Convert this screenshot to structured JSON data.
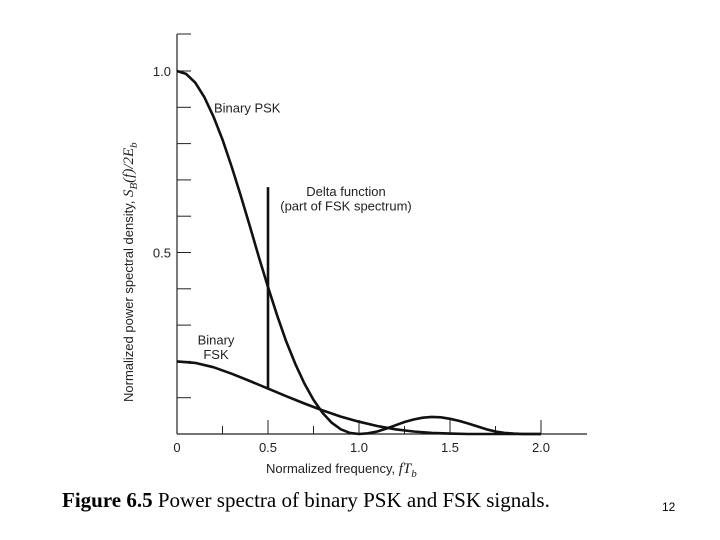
{
  "chart_data": {
    "type": "line",
    "xlabel": "Normalized frequency, ",
    "xlabel_var": "fT",
    "xlabel_sub": "b",
    "ylabel": "Normalized power spectral density, ",
    "ylabel_var": "S",
    "ylabel_sub": "B",
    "ylabel_tail": "(f)/2E",
    "ylabel_tail_sub": "b",
    "xlim": [
      0,
      2.25
    ],
    "ylim": [
      0,
      1.1
    ],
    "x_ticks": [
      {
        "value": 0,
        "label": "0"
      },
      {
        "value": 0.5,
        "label": "0.5"
      },
      {
        "value": 1.0,
        "label": "1.0"
      },
      {
        "value": 1.5,
        "label": "1.5"
      },
      {
        "value": 2.0,
        "label": "2.0"
      }
    ],
    "y_ticks": [
      {
        "value": 0.5,
        "label": "0.5"
      },
      {
        "value": 1.0,
        "label": "1.0"
      }
    ],
    "y_minor_ticks": [
      0.1,
      0.2,
      0.3,
      0.4,
      0.6,
      0.7,
      0.8,
      0.9
    ],
    "series": [
      {
        "name": "Binary PSK",
        "x": [
          0,
          0.05,
          0.1,
          0.15,
          0.2,
          0.25,
          0.3,
          0.35,
          0.4,
          0.45,
          0.5,
          0.55,
          0.6,
          0.65,
          0.7,
          0.75,
          0.8,
          0.85,
          0.9,
          0.95,
          1.0,
          1.05,
          1.1,
          1.15,
          1.2,
          1.25,
          1.3,
          1.35,
          1.4,
          1.45,
          1.5,
          1.55,
          1.6,
          1.65,
          1.7,
          1.75,
          1.8,
          1.85,
          1.9,
          1.95,
          2.0
        ],
        "y": [
          1.0,
          0.992,
          0.968,
          0.928,
          0.875,
          0.811,
          0.737,
          0.657,
          0.573,
          0.487,
          0.405,
          0.327,
          0.255,
          0.193,
          0.139,
          0.094,
          0.058,
          0.031,
          0.013,
          0.003,
          0.0,
          0.002,
          0.007,
          0.015,
          0.024,
          0.033,
          0.04,
          0.045,
          0.047,
          0.046,
          0.042,
          0.036,
          0.029,
          0.021,
          0.013,
          0.007,
          0.003,
          0.001,
          0.0,
          0.0,
          0.0
        ]
      },
      {
        "name": "Binary FSK",
        "x": [
          0,
          0.1,
          0.2,
          0.3,
          0.4,
          0.5,
          0.6,
          0.7,
          0.8,
          0.9,
          1.0,
          1.1,
          1.2,
          1.3,
          1.4,
          1.5,
          1.6,
          1.7,
          1.8,
          1.9,
          2.0
        ],
        "y": [
          0.2,
          0.196,
          0.184,
          0.166,
          0.146,
          0.125,
          0.104,
          0.084,
          0.065,
          0.048,
          0.034,
          0.022,
          0.013,
          0.007,
          0.003,
          0.001,
          0.0,
          0.0,
          0.0,
          0.0,
          0.0
        ]
      }
    ],
    "delta": {
      "x": 0.5,
      "y0": 0.125,
      "y1": 0.68
    },
    "annotations": [
      {
        "text": "Binary PSK",
        "x": 0.1,
        "y": 0.9
      },
      {
        "text": "Delta function",
        "x": 0.69,
        "y": 0.67
      },
      {
        "text": "(part of FSK spectrum)",
        "x": 0.69,
        "y": 0.63
      },
      {
        "text": "Binary",
        "x": 0.11,
        "y": 0.26
      },
      {
        "text": "FSK",
        "x": 0.11,
        "y": 0.22
      }
    ]
  },
  "caption": {
    "bold": "Figure 6.5",
    "text": " Power spectra of binary PSK and FSK signals."
  },
  "page_number": "12"
}
